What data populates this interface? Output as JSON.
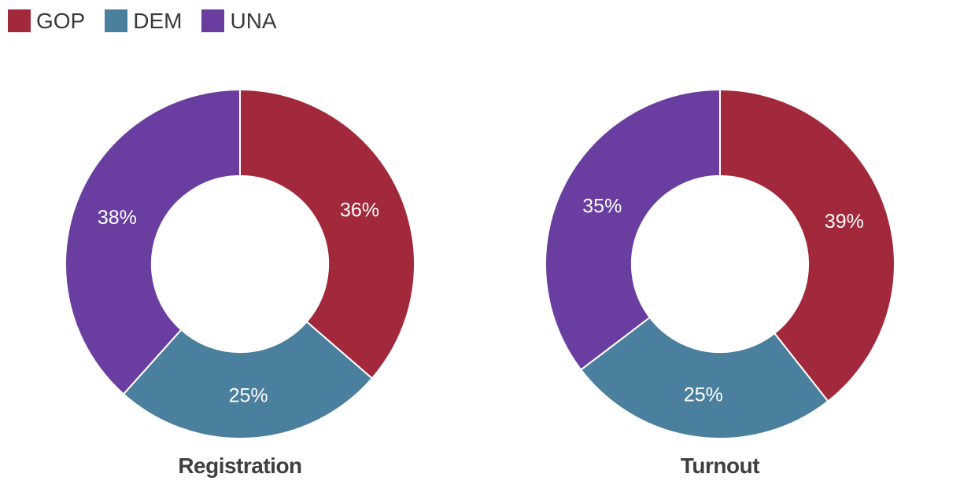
{
  "legend": {
    "items": [
      {
        "label": "GOP",
        "color": "#A2293B"
      },
      {
        "label": "DEM",
        "color": "#4A7F9D"
      },
      {
        "label": "UNA",
        "color": "#6A3EA0"
      }
    ]
  },
  "chart_data": [
    {
      "type": "pie",
      "subtype": "donut",
      "title": "Registration",
      "categories": [
        "GOP",
        "DEM",
        "UNA"
      ],
      "values": [
        36,
        25,
        38
      ],
      "labels": [
        "36%",
        "25%",
        "38%"
      ],
      "colors": [
        "#A2293B",
        "#4A7F9D",
        "#6A3EA0"
      ],
      "unit": "percent",
      "start_angle_deg": 0,
      "direction": "clockwise",
      "inner_radius_ratio": 0.505,
      "legend_position": "top-left",
      "label_color": "#ffffff"
    },
    {
      "type": "pie",
      "subtype": "donut",
      "title": "Turnout",
      "categories": [
        "GOP",
        "DEM",
        "UNA"
      ],
      "values": [
        39,
        25,
        35
      ],
      "labels": [
        "39%",
        "25%",
        "35%"
      ],
      "colors": [
        "#A2293B",
        "#4A7F9D",
        "#6A3EA0"
      ],
      "unit": "percent",
      "start_angle_deg": 0,
      "direction": "clockwise",
      "inner_radius_ratio": 0.505,
      "legend_position": "top-left",
      "label_color": "#ffffff"
    }
  ],
  "styles": {
    "title_color": "#3F3F3F",
    "legend_text_color": "#3A3A3A",
    "slice_divider_color": "#ffffff",
    "background": "#ffffff"
  }
}
